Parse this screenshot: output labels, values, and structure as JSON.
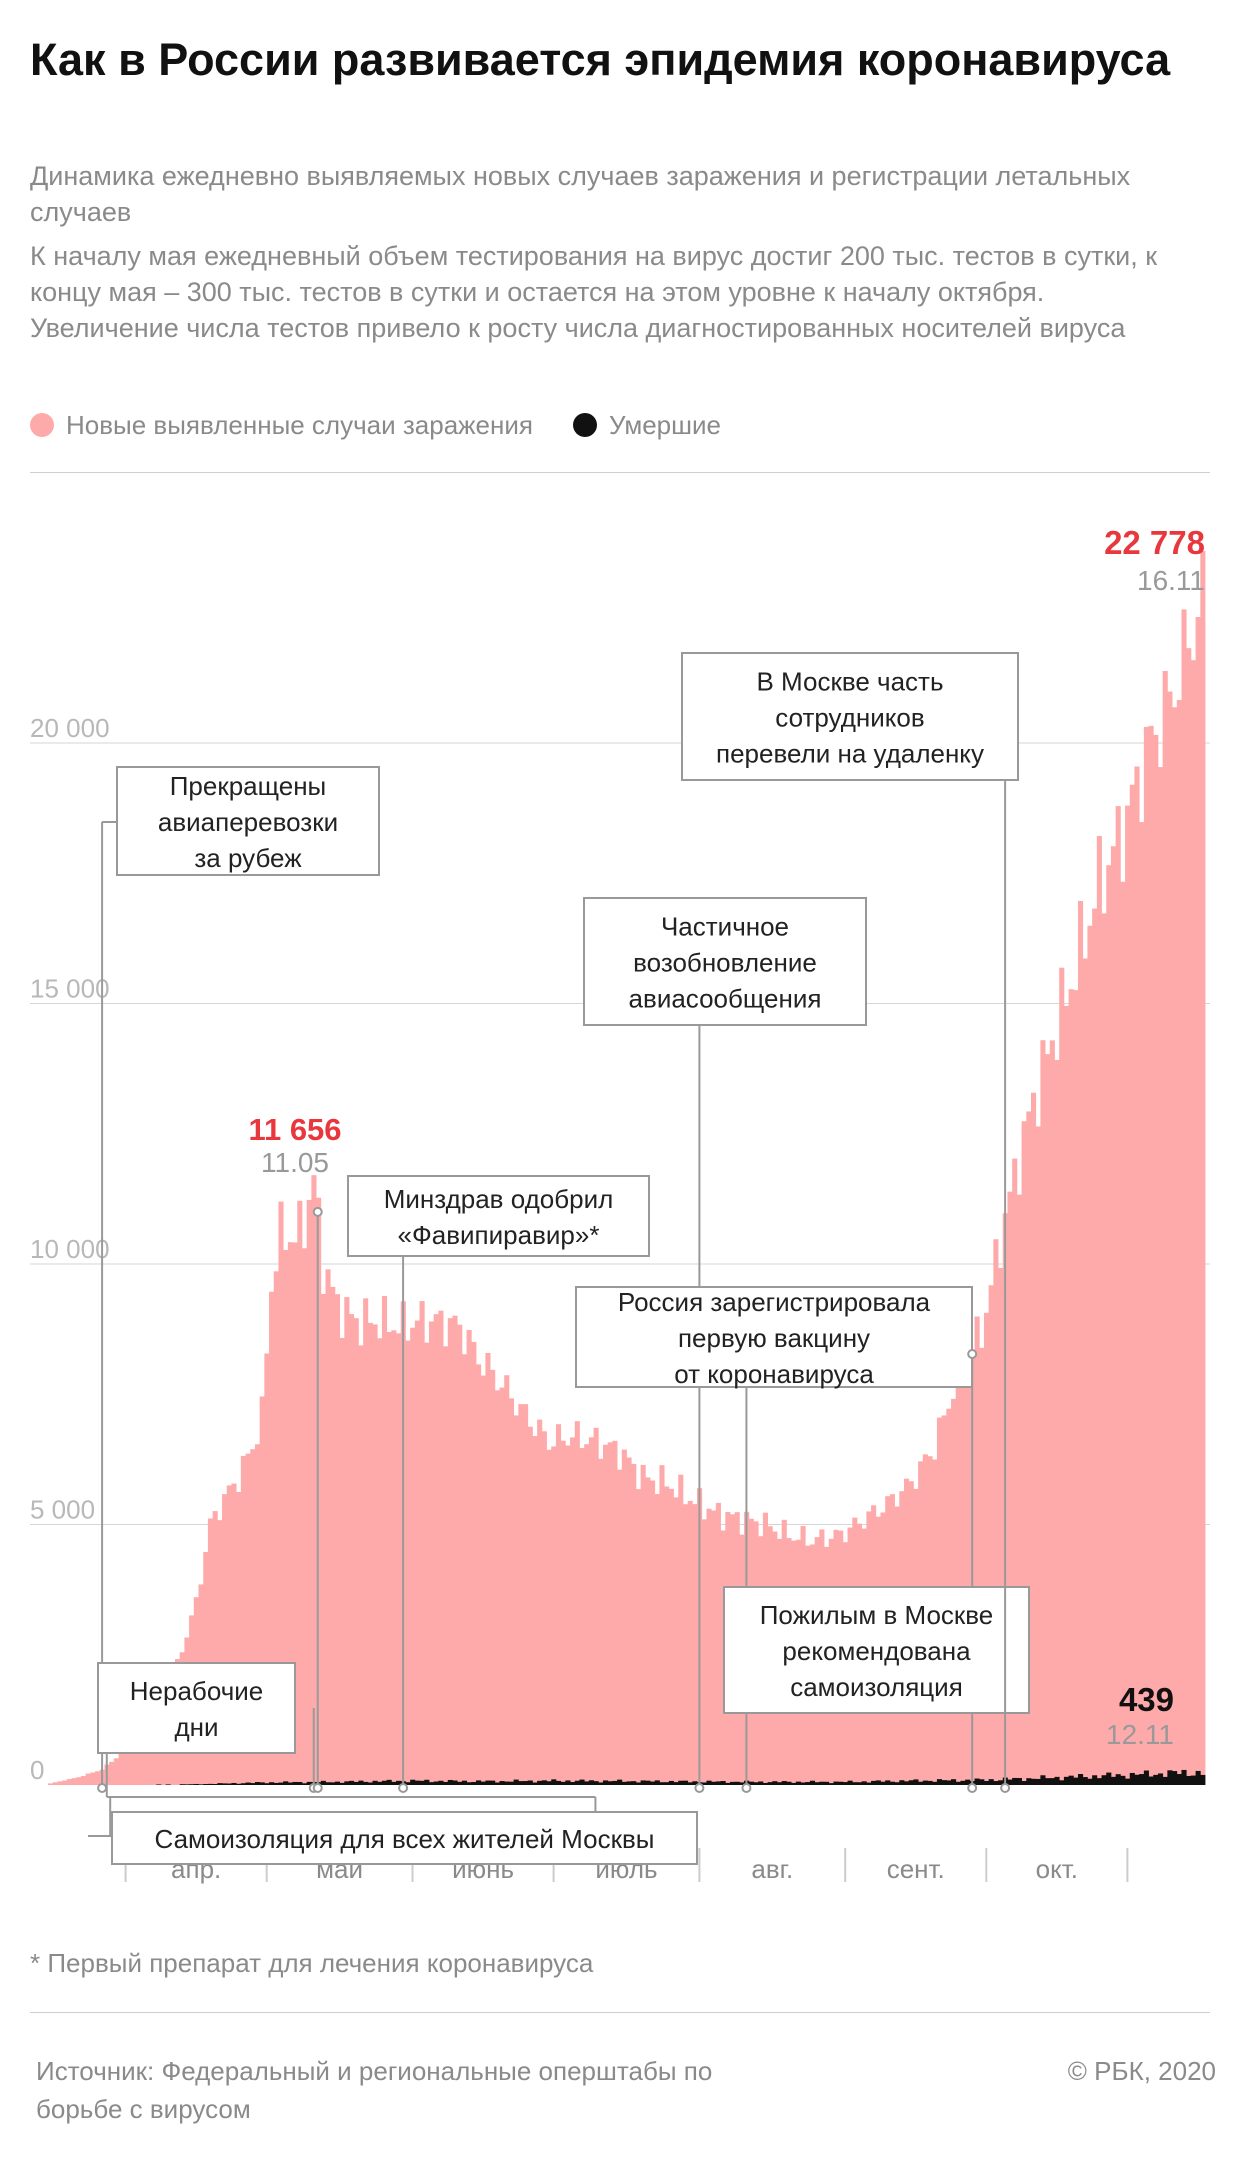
{
  "header": {
    "title": "Как в России развивается эпидемия коронавируса",
    "subtitle": "Динамика ежедневно выявляемых новых случаев заражения и регистрации летальных случаев",
    "description": "К началу мая ежедневный объем тестирования на вирус достиг 200 тыс. тестов в сутки, к концу мая – 300 тыс. тестов в сутки и остается на этом уровне к началу октября. Увеличение числа тестов привело к росту числа диагностированных носителей вируса"
  },
  "legend": {
    "cases_label": "Новые выявленные случаи заражения",
    "deaths_label": "Умершие"
  },
  "colors": {
    "cases": "#ffaaaa",
    "deaths": "#111111",
    "highlight": "#e8383d",
    "muted": "#8a8a8a"
  },
  "chart_data": {
    "type": "bar",
    "x_start": "2020-03-16",
    "x_end": "2020-11-16",
    "ylim": [
      0,
      22778
    ],
    "yticks": [
      0,
      5000,
      10000,
      15000,
      20000
    ],
    "ytick_labels": [
      "0",
      "5 000",
      "10 000",
      "15 000",
      "20 000"
    ],
    "grid": true,
    "legend_position": "top-left",
    "months": [
      {
        "label": "апр.",
        "date": "2020-04-01"
      },
      {
        "label": "май",
        "date": "2020-05-01"
      },
      {
        "label": "июнь",
        "date": "2020-06-01"
      },
      {
        "label": "июль",
        "date": "2020-07-01"
      },
      {
        "label": "авг.",
        "date": "2020-08-01"
      },
      {
        "label": "сент.",
        "date": "2020-09-01"
      },
      {
        "label": "окт.",
        "date": "2020-10-01"
      }
    ],
    "series": [
      {
        "name": "Новые выявленные случаи заражения",
        "points": [
          [
            "2020-03-16",
            30
          ],
          [
            "2020-03-22",
            150
          ],
          [
            "2020-03-27",
            300
          ],
          [
            "2020-03-31",
            600
          ],
          [
            "2020-04-03",
            750
          ],
          [
            "2020-04-07",
            1300
          ],
          [
            "2020-04-10",
            1800
          ],
          [
            "2020-04-13",
            2600
          ],
          [
            "2020-04-16",
            3500
          ],
          [
            "2020-04-19",
            5000
          ],
          [
            "2020-04-22",
            5500
          ],
          [
            "2020-04-25",
            5900
          ],
          [
            "2020-04-28",
            6500
          ],
          [
            "2020-04-30",
            7100
          ],
          [
            "2020-05-02",
            9600
          ],
          [
            "2020-05-04",
            10600
          ],
          [
            "2020-05-07",
            10500
          ],
          [
            "2020-05-09",
            10800
          ],
          [
            "2020-05-11",
            11656
          ],
          [
            "2020-05-13",
            10000
          ],
          [
            "2020-05-16",
            9200
          ],
          [
            "2020-05-20",
            8900
          ],
          [
            "2020-05-25",
            8900
          ],
          [
            "2020-05-30",
            8800
          ],
          [
            "2020-06-02",
            8900
          ],
          [
            "2020-06-06",
            8900
          ],
          [
            "2020-06-11",
            8800
          ],
          [
            "2020-06-15",
            8200
          ],
          [
            "2020-06-20",
            7700
          ],
          [
            "2020-06-25",
            7100
          ],
          [
            "2020-06-30",
            6600
          ],
          [
            "2020-07-05",
            6700
          ],
          [
            "2020-07-10",
            6600
          ],
          [
            "2020-07-15",
            6400
          ],
          [
            "2020-07-20",
            5900
          ],
          [
            "2020-07-25",
            5800
          ],
          [
            "2020-07-30",
            5500
          ],
          [
            "2020-08-05",
            5200
          ],
          [
            "2020-08-10",
            5100
          ],
          [
            "2020-08-15",
            5000
          ],
          [
            "2020-08-20",
            4800
          ],
          [
            "2020-08-25",
            4700
          ],
          [
            "2020-08-31",
            4800
          ],
          [
            "2020-09-05",
            5100
          ],
          [
            "2020-09-10",
            5400
          ],
          [
            "2020-09-15",
            5800
          ],
          [
            "2020-09-20",
            6500
          ],
          [
            "2020-09-25",
            7900
          ],
          [
            "2020-09-30",
            8700
          ],
          [
            "2020-10-05",
            10900
          ],
          [
            "2020-10-10",
            12800
          ],
          [
            "2020-10-15",
            14300
          ],
          [
            "2020-10-20",
            15700
          ],
          [
            "2020-10-25",
            17300
          ],
          [
            "2020-10-30",
            18300
          ],
          [
            "2020-11-04",
            19800
          ],
          [
            "2020-11-09",
            20800
          ],
          [
            "2020-11-13",
            21900
          ],
          [
            "2020-11-16",
            22778
          ]
        ]
      },
      {
        "name": "Умершие",
        "points": [
          [
            "2020-03-16",
            0
          ],
          [
            "2020-04-01",
            5
          ],
          [
            "2020-04-15",
            25
          ],
          [
            "2020-05-01",
            90
          ],
          [
            "2020-05-15",
            110
          ],
          [
            "2020-06-01",
            150
          ],
          [
            "2020-06-15",
            130
          ],
          [
            "2020-07-01",
            150
          ],
          [
            "2020-07-15",
            140
          ],
          [
            "2020-08-01",
            120
          ],
          [
            "2020-08-15",
            110
          ],
          [
            "2020-09-01",
            110
          ],
          [
            "2020-09-15",
            150
          ],
          [
            "2020-10-01",
            180
          ],
          [
            "2020-10-15",
            260
          ],
          [
            "2020-10-30",
            350
          ],
          [
            "2020-11-12",
            439
          ],
          [
            "2020-11-16",
            420
          ]
        ]
      }
    ],
    "peaks": [
      {
        "series": "cases",
        "value": "11 656",
        "date_label": "11.05",
        "date": "2020-05-11"
      },
      {
        "series": "cases",
        "value": "22 778",
        "date_label": "16.11",
        "date": "2020-11-16"
      },
      {
        "series": "deaths",
        "value": "439",
        "date_label": "12.11",
        "date": "2020-11-12"
      }
    ],
    "annotations": [
      {
        "lines": [
          "Прекращены",
          "авиаперевозки",
          "за рубеж"
        ],
        "date": "2020-03-27"
      },
      {
        "lines": [
          "Нерабочие",
          "дни"
        ],
        "date_start": "2020-03-28",
        "date_end": "2020-05-11"
      },
      {
        "lines": [
          "Самоизоляция для всех жителей Москвы"
        ],
        "date_start": "2020-03-30",
        "date_end": "2020-06-08"
      },
      {
        "lines": [
          "Минздрав одобрил",
          "«Фавипиравир»*"
        ],
        "date": "2020-05-30"
      },
      {
        "lines": [
          "Частичное",
          "возобновление",
          "авиасообщения"
        ],
        "date": "2020-08-01"
      },
      {
        "lines": [
          "Россия зарегистрировала",
          "первую вакцину",
          "от коронавируса"
        ],
        "date": "2020-08-11"
      },
      {
        "lines": [
          "Пожилым в Москве",
          "рекомендована",
          "самоизоляция"
        ],
        "date": "2020-09-28"
      },
      {
        "lines": [
          "В Москве часть",
          "сотрудников",
          "перевели на удаленку"
        ],
        "date": "2020-10-05"
      }
    ]
  },
  "footnote": "* Первый препарат для лечения коронавируса",
  "source": "Источник: Федеральный и региональные оперштабы по борьбе с вирусом",
  "copyright": "© РБК, 2020"
}
